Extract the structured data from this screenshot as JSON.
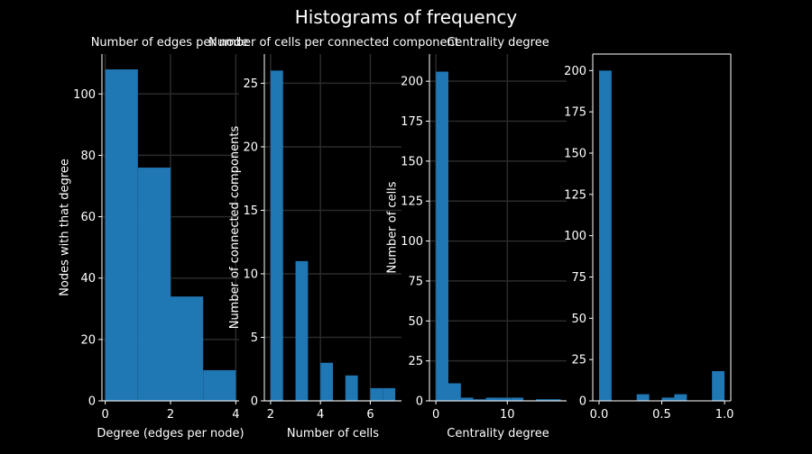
{
  "figure": {
    "suptitle": "Histograms of frequency"
  },
  "colors": {
    "background": "#000000",
    "bar": "#1f77b4",
    "axis": "#ffffff",
    "grid": "#2a2a2a"
  },
  "chart_data": [
    {
      "type": "bar",
      "title": "Number of edges per node",
      "xlabel": "Degree (edges per node)",
      "ylabel": "Nodes with that degree",
      "xlim": [
        -0.1,
        4.1
      ],
      "ylim": [
        0,
        113
      ],
      "xticks": [
        0,
        2,
        4
      ],
      "yticks": [
        0,
        20,
        40,
        60,
        80,
        100
      ],
      "grid": true,
      "spines": "left-bottom",
      "bins": [
        {
          "x0": 0,
          "x1": 1,
          "value": 108
        },
        {
          "x0": 1,
          "x1": 2,
          "value": 76
        },
        {
          "x0": 2,
          "x1": 3,
          "value": 34
        },
        {
          "x0": 3,
          "x1": 4,
          "value": 10
        }
      ]
    },
    {
      "type": "bar",
      "title": "Number of cells per connected component",
      "xlabel": "Number of cells",
      "ylabel": "Number of connected components",
      "xlim": [
        1.75,
        7.25
      ],
      "ylim": [
        0,
        27.3
      ],
      "xticks": [
        2,
        4,
        6
      ],
      "yticks": [
        0,
        5,
        10,
        15,
        20,
        25
      ],
      "grid": true,
      "spines": "left-bottom",
      "bins": [
        {
          "x0": 2.0,
          "x1": 2.5,
          "value": 26
        },
        {
          "x0": 2.5,
          "x1": 3.0,
          "value": 0
        },
        {
          "x0": 3.0,
          "x1": 3.5,
          "value": 11
        },
        {
          "x0": 3.5,
          "x1": 4.0,
          "value": 0
        },
        {
          "x0": 4.0,
          "x1": 4.5,
          "value": 3
        },
        {
          "x0": 4.5,
          "x1": 5.0,
          "value": 0
        },
        {
          "x0": 5.0,
          "x1": 5.5,
          "value": 2
        },
        {
          "x0": 5.5,
          "x1": 6.0,
          "value": 0
        },
        {
          "x0": 6.0,
          "x1": 6.5,
          "value": 1
        },
        {
          "x0": 6.5,
          "x1": 7.0,
          "value": 1
        }
      ]
    },
    {
      "type": "bar",
      "title": "Centrality degree",
      "xlabel": "Centrality degree",
      "ylabel": "Number of cells",
      "xlim": [
        -0.9,
        18.3
      ],
      "ylim": [
        0,
        217
      ],
      "xticks": [
        0,
        10
      ],
      "yticks": [
        0,
        25,
        50,
        75,
        100,
        125,
        150,
        175,
        200
      ],
      "grid": true,
      "spines": "left-bottom",
      "bins": [
        {
          "x0": 0.0,
          "x1": 1.75,
          "value": 206
        },
        {
          "x0": 1.75,
          "x1": 3.5,
          "value": 11
        },
        {
          "x0": 3.5,
          "x1": 5.25,
          "value": 2
        },
        {
          "x0": 5.25,
          "x1": 7.0,
          "value": 1
        },
        {
          "x0": 7.0,
          "x1": 8.75,
          "value": 2
        },
        {
          "x0": 8.75,
          "x1": 10.5,
          "value": 2
        },
        {
          "x0": 10.5,
          "x1": 12.25,
          "value": 2
        },
        {
          "x0": 12.25,
          "x1": 14.0,
          "value": 0
        },
        {
          "x0": 14.0,
          "x1": 15.75,
          "value": 1
        },
        {
          "x0": 15.75,
          "x1": 17.5,
          "value": 1
        }
      ]
    },
    {
      "type": "bar",
      "title": "",
      "xlabel": "",
      "ylabel": "",
      "xlim": [
        -0.05,
        1.05
      ],
      "ylim": [
        0,
        210
      ],
      "xticks": [
        0.0,
        0.5,
        1.0
      ],
      "xticklabels": [
        "0.0",
        "0.5",
        "1.0"
      ],
      "yticks": [
        0,
        25,
        50,
        75,
        100,
        125,
        150,
        175,
        200
      ],
      "grid": false,
      "spines": "all",
      "bins": [
        {
          "x0": 0.0,
          "x1": 0.1,
          "value": 200
        },
        {
          "x0": 0.1,
          "x1": 0.2,
          "value": 0
        },
        {
          "x0": 0.2,
          "x1": 0.3,
          "value": 0
        },
        {
          "x0": 0.3,
          "x1": 0.4,
          "value": 4
        },
        {
          "x0": 0.4,
          "x1": 0.5,
          "value": 0
        },
        {
          "x0": 0.5,
          "x1": 0.6,
          "value": 2
        },
        {
          "x0": 0.6,
          "x1": 0.7,
          "value": 4
        },
        {
          "x0": 0.7,
          "x1": 0.8,
          "value": 0
        },
        {
          "x0": 0.8,
          "x1": 0.9,
          "value": 0
        },
        {
          "x0": 0.9,
          "x1": 1.0,
          "value": 18
        }
      ]
    }
  ]
}
